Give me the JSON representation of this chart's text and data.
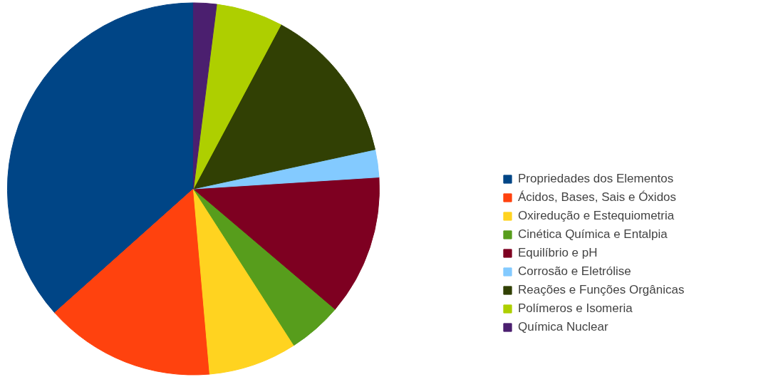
{
  "chart_data": {
    "type": "pie",
    "categories": [
      "Propriedades dos Elementos",
      "Ácidos, Bases, Sais e Óxidos",
      "Oxiredução e Estequiometria",
      "Cinética Química e Entalpia",
      "Equilíbrio e pH",
      "Corrosão e Eletrólise",
      "Reações e Funções Orgânicas",
      "Polímeros e Isomeria",
      "Química Nuclear"
    ],
    "values": [
      36.6,
      14.8,
      7.7,
      4.7,
      12.2,
      2.4,
      13.8,
      5.8,
      2.0
    ],
    "colors": [
      "#004586",
      "#ff420e",
      "#ffd320",
      "#579d1c",
      "#7e0021",
      "#83caff",
      "#314004",
      "#aecf00",
      "#4b1f6f"
    ],
    "legend": "right"
  }
}
